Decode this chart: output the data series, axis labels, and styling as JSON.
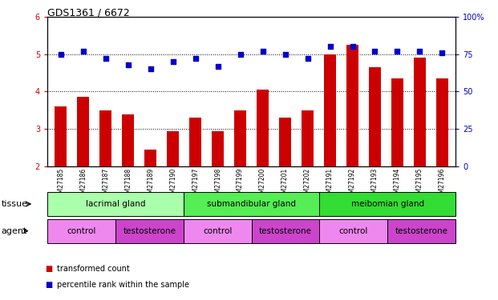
{
  "title": "GDS1361 / 6672",
  "samples": [
    "GSM27185",
    "GSM27186",
    "GSM27187",
    "GSM27188",
    "GSM27189",
    "GSM27190",
    "GSM27197",
    "GSM27198",
    "GSM27199",
    "GSM27200",
    "GSM27201",
    "GSM27202",
    "GSM27191",
    "GSM27192",
    "GSM27193",
    "GSM27194",
    "GSM27195",
    "GSM27196"
  ],
  "bar_values": [
    3.6,
    3.85,
    3.5,
    3.4,
    2.45,
    2.95,
    3.3,
    2.95,
    3.5,
    4.05,
    3.3,
    3.5,
    5.0,
    5.25,
    4.65,
    4.35,
    4.9,
    4.35
  ],
  "dot_values": [
    75,
    77,
    72,
    68,
    65,
    70,
    72,
    67,
    75,
    77,
    75,
    72,
    80,
    80,
    77,
    77,
    77,
    76
  ],
  "bar_color": "#cc0000",
  "dot_color": "#0000cc",
  "ylim_left": [
    2,
    6
  ],
  "ylim_right": [
    0,
    100
  ],
  "yticks_left": [
    2,
    3,
    4,
    5,
    6
  ],
  "yticks_right": [
    0,
    25,
    50,
    75,
    100
  ],
  "ytick_labels_right": [
    "0",
    "25",
    "50",
    "75",
    "100%"
  ],
  "grid_values": [
    3,
    4,
    5
  ],
  "tissue_groups": [
    {
      "label": "lacrimal gland",
      "start": 0,
      "end": 6,
      "color": "#aaffaa"
    },
    {
      "label": "submandibular gland",
      "start": 6,
      "end": 12,
      "color": "#55ee55"
    },
    {
      "label": "meibomian gland",
      "start": 12,
      "end": 18,
      "color": "#33dd33"
    }
  ],
  "agent_groups": [
    {
      "label": "control",
      "start": 0,
      "end": 3,
      "color": "#ee88ee"
    },
    {
      "label": "testosterone",
      "start": 3,
      "end": 6,
      "color": "#cc44cc"
    },
    {
      "label": "control",
      "start": 6,
      "end": 9,
      "color": "#ee88ee"
    },
    {
      "label": "testosterone",
      "start": 9,
      "end": 12,
      "color": "#cc44cc"
    },
    {
      "label": "control",
      "start": 12,
      "end": 15,
      "color": "#ee88ee"
    },
    {
      "label": "testosterone",
      "start": 15,
      "end": 18,
      "color": "#cc44cc"
    }
  ],
  "legend_bar_label": "transformed count",
  "legend_dot_label": "percentile rank within the sample",
  "tissue_label": "tissue",
  "agent_label": "agent",
  "background_color": "#ffffff",
  "plot_bg_color": "#ffffff",
  "title_fontsize": 9,
  "tick_fontsize": 7,
  "label_fontsize": 7.5,
  "row_label_fontsize": 8
}
